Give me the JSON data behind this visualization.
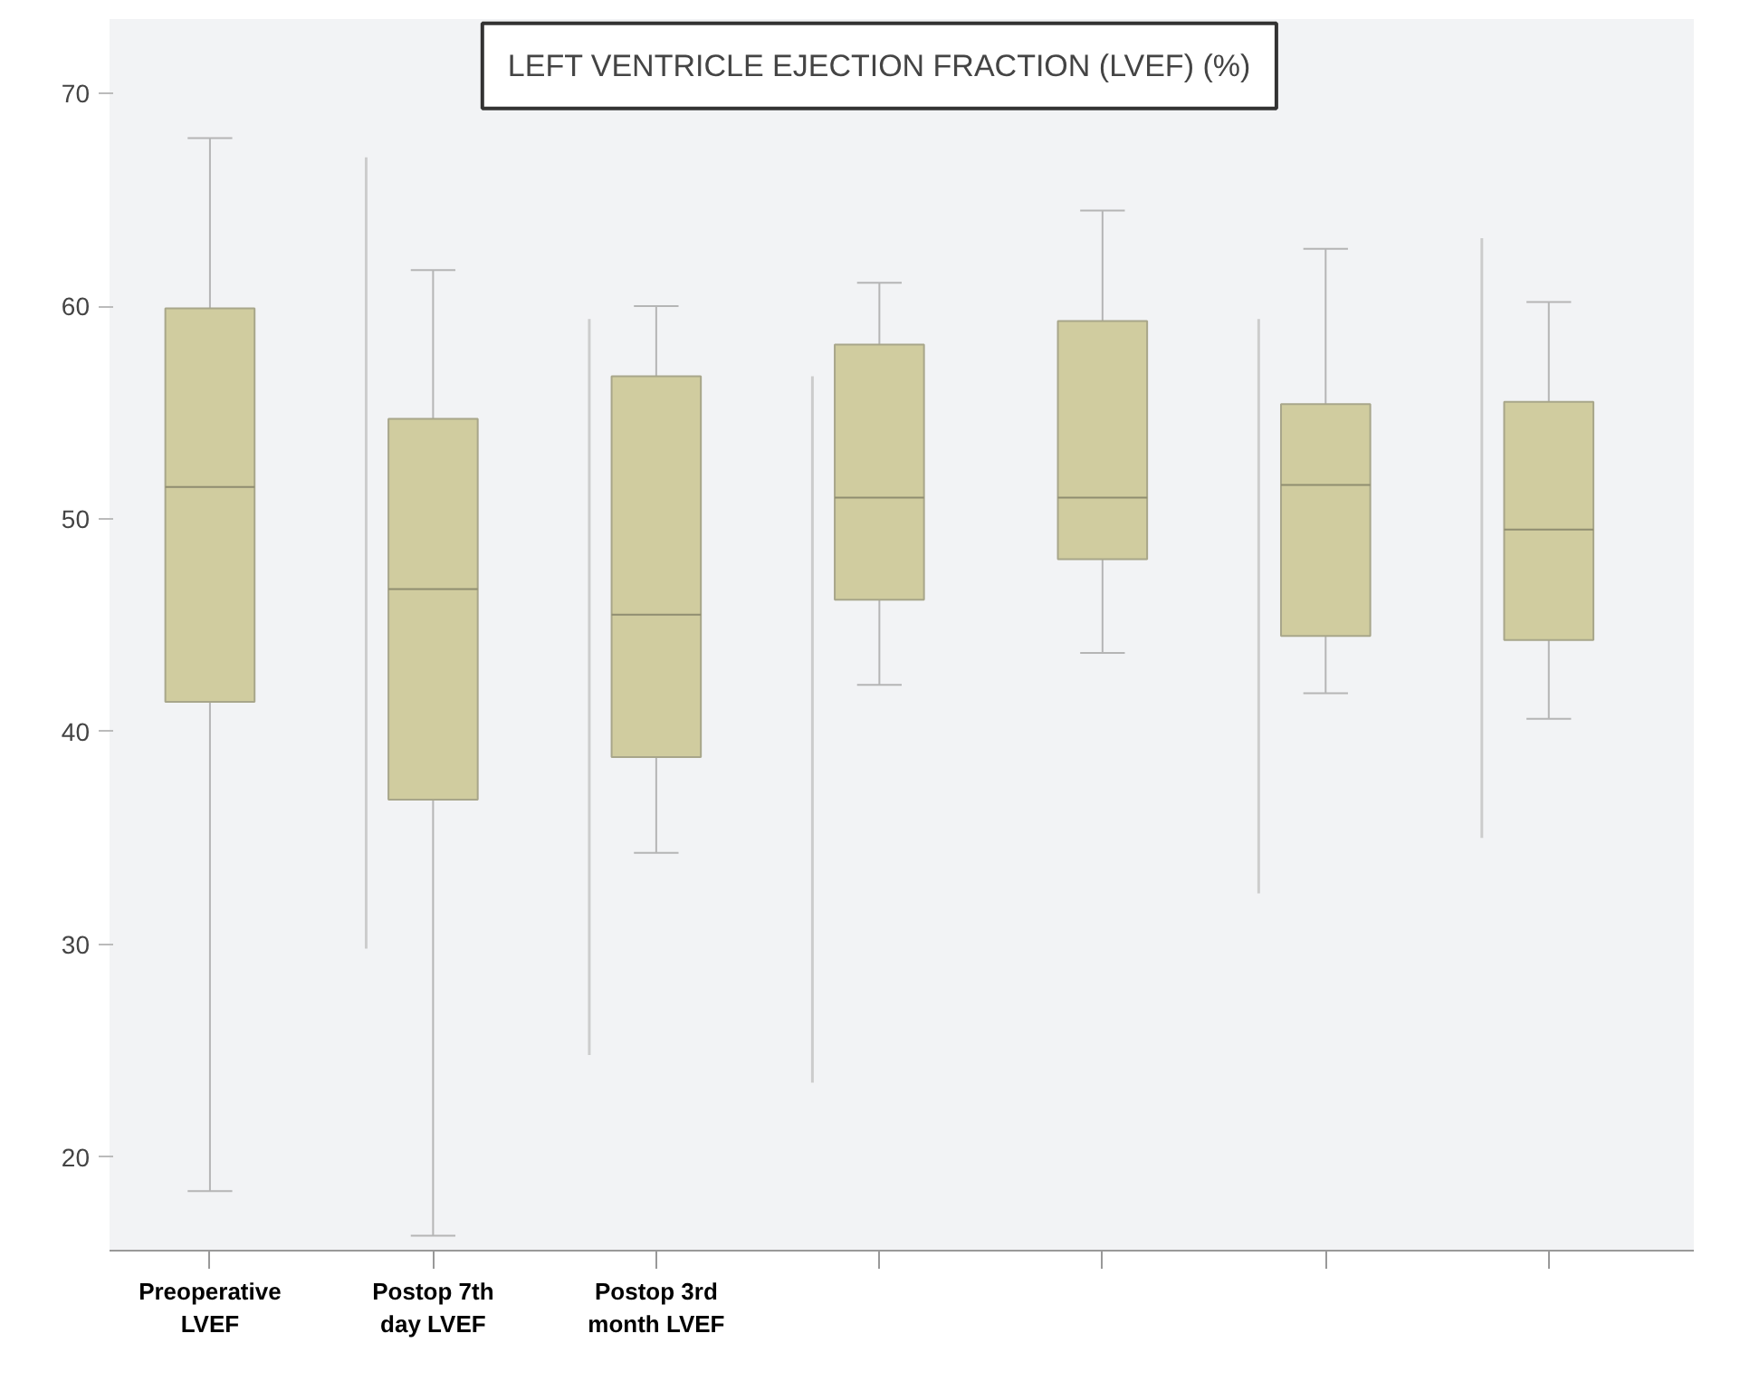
{
  "chart_data": {
    "type": "box",
    "title": "LEFT VENTRICLE EJECTION FRACTION (LVEF) (%)",
    "categories": [
      "Preoperative LVEF",
      "Postop 7th day LVEF",
      "Postop 3rd month LVEF",
      null,
      null,
      null,
      null
    ],
    "ylim": [
      15.6,
      73.5
    ],
    "yticks": [
      20,
      30,
      40,
      50,
      60,
      70
    ],
    "grid": false,
    "series": [
      {
        "type": "bar",
        "color": "#cccccc",
        "base": [
          null,
          29.8,
          24.8,
          23.5,
          null,
          32.4,
          35.0
        ],
        "values": [
          null,
          37.2,
          34.6,
          33.2,
          null,
          27.0,
          28.2
        ]
      },
      {
        "color": "#d0cc9f",
        "boxes": [
          {
            "low": 18.4,
            "q1": 41.4,
            "median": 51.5,
            "q3": 59.9,
            "high": 67.9
          },
          {
            "low": 16.3,
            "q1": 36.8,
            "median": 46.7,
            "q3": 54.7,
            "high": 61.7
          },
          {
            "low": 34.3,
            "q1": 38.8,
            "median": 45.5,
            "q3": 56.7,
            "high": 60.0
          },
          {
            "low": 42.2,
            "q1": 46.2,
            "median": 51.0,
            "q3": 58.2,
            "high": 61.1
          },
          {
            "low": 43.7,
            "q1": 48.1,
            "median": 51.0,
            "q3": 59.3,
            "high": 64.5
          },
          {
            "low": 41.8,
            "q1": 44.5,
            "median": 51.6,
            "q3": 55.4,
            "high": 62.7
          },
          {
            "low": 40.6,
            "q1": 44.3,
            "median": 49.5,
            "q3": 55.5,
            "high": 60.2
          }
        ]
      }
    ]
  }
}
